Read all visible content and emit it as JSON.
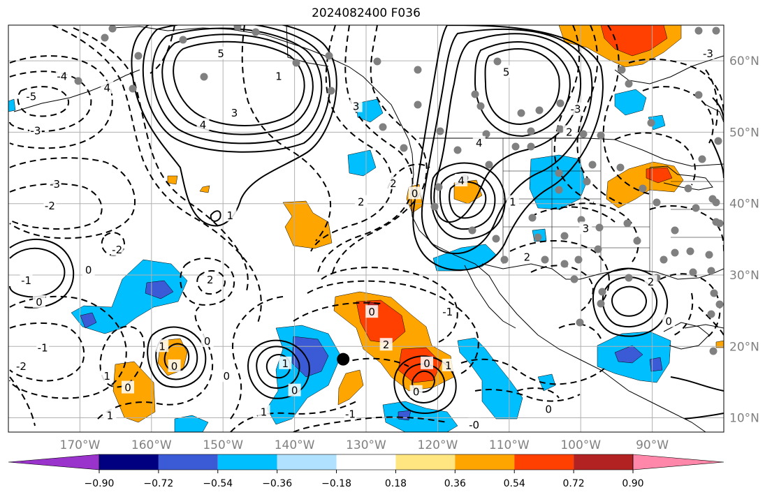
{
  "title": "2024082400 F036",
  "map": {
    "projection": "PlateCarree",
    "lon_range": [
      -180,
      -80
    ],
    "lat_range": [
      8,
      65
    ],
    "lon_ticks": [
      {
        "label": "170°W",
        "lon": -170
      },
      {
        "label": "160°W",
        "lon": -160
      },
      {
        "label": "150°W",
        "lon": -150
      },
      {
        "label": "140°W",
        "lon": -140
      },
      {
        "label": "130°W",
        "lon": -130
      },
      {
        "label": "120°W",
        "lon": -120
      },
      {
        "label": "110°W",
        "lon": -110
      },
      {
        "label": "100°W",
        "lon": -100
      },
      {
        "label": "90°W",
        "lon": -90
      }
    ],
    "lat_ticks": [
      {
        "label": "60°N",
        "lat": 60
      },
      {
        "label": "50°N",
        "lat": 50
      },
      {
        "label": "40°N",
        "lat": 40
      },
      {
        "label": "30°N",
        "lat": 30
      },
      {
        "label": "20°N",
        "lat": 20
      },
      {
        "label": "10°N",
        "lat": 10
      }
    ],
    "grid": true,
    "marker": {
      "lon": -133.2,
      "lat": 18.2,
      "color": "#000000"
    },
    "contour_labels": [
      {
        "text": "-5",
        "lon": -176.8,
        "lat": 55
      },
      {
        "text": "-4",
        "lon": -172.5,
        "lat": 57.8
      },
      {
        "text": "-3",
        "lon": -176.2,
        "lat": 50.2
      },
      {
        "text": "-3",
        "lon": -173.5,
        "lat": 42.7
      },
      {
        "text": "-2",
        "lon": -174.2,
        "lat": 39.7
      },
      {
        "text": "-1",
        "lon": -177.5,
        "lat": 29.2
      },
      {
        "text": "0",
        "lon": -168.8,
        "lat": 30.7
      },
      {
        "text": "-2",
        "lon": -164.8,
        "lat": 33.5
      },
      {
        "text": "0",
        "lon": -175.7,
        "lat": 26.2
      },
      {
        "text": "-1",
        "lon": -175.2,
        "lat": 19.8
      },
      {
        "text": "-2",
        "lon": -178.2,
        "lat": 17.2
      },
      {
        "text": "1",
        "lon": -166.2,
        "lat": 15.8
      },
      {
        "text": "0",
        "lon": -163.3,
        "lat": 14.2
      },
      {
        "text": "1",
        "lon": -158.5,
        "lat": 20
      },
      {
        "text": "0",
        "lon": -156.8,
        "lat": 17.2
      },
      {
        "text": "0",
        "lon": -152.2,
        "lat": 20.7
      },
      {
        "text": "0",
        "lon": -149.5,
        "lat": 15.8
      },
      {
        "text": "1",
        "lon": -165.8,
        "lat": 10.3
      },
      {
        "text": "4",
        "lon": -166.2,
        "lat": 56.2
      },
      {
        "text": "5",
        "lon": -150.3,
        "lat": 61
      },
      {
        "text": "4",
        "lon": -152.8,
        "lat": 51
      },
      {
        "text": "3",
        "lon": -148.4,
        "lat": 52.7
      },
      {
        "text": "1",
        "lon": -149,
        "lat": 38.3
      },
      {
        "text": "2",
        "lon": -151.8,
        "lat": 29.3
      },
      {
        "text": "1",
        "lon": -141.3,
        "lat": 17.6
      },
      {
        "text": "0",
        "lon": -140,
        "lat": 13.8
      },
      {
        "text": "1",
        "lon": -144.3,
        "lat": 10.8
      },
      {
        "text": "-1",
        "lon": -132.2,
        "lat": 10.5
      },
      {
        "text": "0",
        "lon": -123,
        "lat": 13.6
      },
      {
        "text": "2",
        "lon": -127.2,
        "lat": 20.2
      },
      {
        "text": "0",
        "lon": -129.2,
        "lat": 24.8
      },
      {
        "text": "0",
        "lon": -121.5,
        "lat": 17.6
      },
      {
        "text": "1",
        "lon": -118.5,
        "lat": 17.3
      },
      {
        "text": "-1",
        "lon": -118.6,
        "lat": 24.8
      },
      {
        "text": "-0",
        "lon": -114.9,
        "lat": 9
      },
      {
        "text": "0",
        "lon": -104.5,
        "lat": 11.2
      },
      {
        "text": "3",
        "lon": -131.4,
        "lat": 53.6
      },
      {
        "text": "1",
        "lon": -142.2,
        "lat": 57.8
      },
      {
        "text": "2",
        "lon": -130.7,
        "lat": 40.2
      },
      {
        "text": "2",
        "lon": -126.2,
        "lat": 42.8
      },
      {
        "text": "0",
        "lon": -123.2,
        "lat": 41.4
      },
      {
        "text": "4",
        "lon": -114.2,
        "lat": 48.5
      },
      {
        "text": "5",
        "lon": -110.4,
        "lat": 58.4
      },
      {
        "text": "1",
        "lon": -109.5,
        "lat": 40.2
      },
      {
        "text": "4",
        "lon": -116.7,
        "lat": 43.2
      },
      {
        "text": "2",
        "lon": -101.6,
        "lat": 50
      },
      {
        "text": "-3",
        "lon": -100.7,
        "lat": 53.2
      },
      {
        "text": "3",
        "lon": -99.3,
        "lat": 36.5
      },
      {
        "text": "2",
        "lon": -107.5,
        "lat": 32.5
      },
      {
        "text": "2",
        "lon": -90.2,
        "lat": 29
      },
      {
        "text": "0",
        "lon": -87.7,
        "lat": 23.5
      },
      {
        "text": "-3",
        "lon": -82.2,
        "lat": 61
      }
    ]
  },
  "colorbar": {
    "colors": [
      "#9933cc",
      "#000080",
      "#3b5bd6",
      "#00bfff",
      "#b0e2ff",
      "#ffffff",
      "#ffe680",
      "#ffa500",
      "#ff4000",
      "#b22222",
      "#ff88aa"
    ],
    "tick_labels": [
      "−0.90",
      "−0.72",
      "−0.54",
      "−0.36",
      "−0.18",
      "0.18",
      "0.36",
      "0.54",
      "0.72",
      "0.90"
    ],
    "extend": "both"
  }
}
